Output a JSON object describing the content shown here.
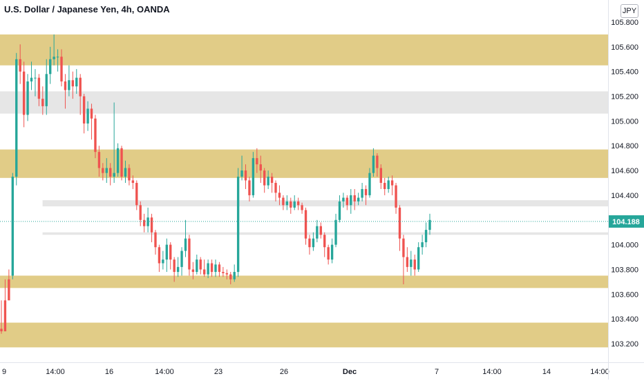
{
  "header": {
    "title": "U.S. Dollar / Japanese Yen, 4h, OANDA",
    "currency": "JPY"
  },
  "colors": {
    "bull": "#26a69a",
    "bear": "#ef5350",
    "resistance_zone": "#dec77a",
    "support_zone_grey": "#e6e6e6",
    "price_label_bg": "#26a69a",
    "price_line": "#26a69a",
    "axis_text": "#131722"
  },
  "chart_data": {
    "type": "candlestick",
    "title": "U.S. Dollar / Japanese Yen, 4h, OANDA",
    "ylim": [
      103.1,
      105.85
    ],
    "y_ticks": [
      "105.800",
      "105.600",
      "105.400",
      "105.200",
      "105.000",
      "104.800",
      "104.600",
      "104.400",
      "104.200",
      "104.000",
      "103.800",
      "103.600",
      "103.400",
      "103.200"
    ],
    "x_ticks": [
      "9",
      "14:00",
      "16",
      "14:00",
      "23",
      "26",
      "Dec",
      "7",
      "14:00",
      "14",
      "14:00"
    ],
    "current_price": "104.188",
    "current_price_value": 104.188,
    "zones": [
      {
        "kind": "gold",
        "y_top": 105.7,
        "y_bottom": 105.45,
        "x_start": 0,
        "x_end": 1
      },
      {
        "kind": "grey",
        "y_top": 105.24,
        "y_bottom": 105.06,
        "x_start": 0,
        "x_end": 1
      },
      {
        "kind": "gold",
        "y_top": 104.77,
        "y_bottom": 104.54,
        "x_start": 0,
        "x_end": 1
      },
      {
        "kind": "grey",
        "y_top": 104.36,
        "y_bottom": 104.31,
        "x_start": 0.07,
        "x_end": 1
      },
      {
        "kind": "grey",
        "y_top": 104.1,
        "y_bottom": 104.08,
        "x_start": 0.07,
        "x_end": 1
      },
      {
        "kind": "gold",
        "y_top": 103.75,
        "y_bottom": 103.65,
        "x_start": 0,
        "x_end": 1
      },
      {
        "kind": "gold",
        "y_top": 103.37,
        "y_bottom": 103.17,
        "x_start": 0,
        "x_end": 1
      }
    ],
    "candles": [
      [
        103.32,
        103.3,
        103.55,
        103.28
      ],
      [
        103.55,
        103.3,
        103.72,
        103.52
      ],
      [
        103.72,
        103.55,
        103.8,
        103.65
      ],
      [
        103.75,
        104.55,
        104.58,
        103.72
      ],
      [
        104.55,
        105.5,
        105.55,
        104.48
      ],
      [
        105.5,
        105.4,
        105.62,
        105.3
      ],
      [
        105.4,
        105.05,
        105.48,
        104.95
      ],
      [
        105.05,
        105.32,
        105.38,
        105.0
      ],
      [
        105.32,
        105.35,
        105.48,
        105.25
      ],
      [
        105.35,
        105.35,
        105.42,
        105.2
      ],
      [
        105.35,
        105.18,
        105.38,
        105.12
      ],
      [
        105.18,
        105.12,
        105.28,
        105.05
      ],
      [
        105.12,
        105.38,
        105.5,
        105.05
      ],
      [
        105.38,
        105.5,
        105.6,
        105.3
      ],
      [
        105.5,
        105.52,
        105.7,
        105.45
      ],
      [
        105.52,
        105.52,
        105.58,
        105.4
      ],
      [
        105.52,
        105.32,
        105.58,
        105.28
      ],
      [
        105.32,
        105.25,
        105.38,
        105.1
      ],
      [
        105.25,
        105.33,
        105.45,
        105.2
      ],
      [
        105.33,
        105.28,
        105.4,
        105.18
      ],
      [
        105.28,
        105.35,
        105.42,
        105.22
      ],
      [
        105.35,
        105.2,
        105.38,
        105.05
      ],
      [
        105.2,
        104.98,
        105.22,
        104.9
      ],
      [
        104.98,
        105.1,
        105.16,
        104.92
      ],
      [
        105.1,
        105.02,
        105.14,
        104.85
      ],
      [
        105.02,
        104.75,
        105.05,
        104.7
      ],
      [
        104.75,
        104.62,
        104.8,
        104.55
      ],
      [
        104.62,
        104.58,
        104.66,
        104.52
      ],
      [
        104.58,
        104.62,
        104.7,
        104.5
      ],
      [
        104.62,
        104.55,
        104.66,
        104.48
      ],
      [
        104.55,
        104.58,
        105.15,
        104.5
      ],
      [
        104.58,
        104.78,
        104.82,
        104.55
      ],
      [
        104.78,
        104.55,
        104.8,
        104.52
      ],
      [
        104.55,
        104.62,
        104.68,
        104.5
      ],
      [
        104.62,
        104.52,
        104.65,
        104.48
      ],
      [
        104.52,
        104.5,
        104.56,
        104.45
      ],
      [
        104.5,
        104.32,
        104.52,
        104.28
      ],
      [
        104.32,
        104.2,
        104.35,
        104.15
      ],
      [
        104.2,
        104.15,
        104.25,
        104.1
      ],
      [
        104.15,
        104.22,
        104.3,
        104.1
      ],
      [
        104.22,
        104.1,
        104.25,
        104.02
      ],
      [
        104.1,
        103.98,
        104.12,
        103.92
      ],
      [
        103.98,
        103.85,
        104.0,
        103.78
      ],
      [
        103.85,
        103.88,
        103.95,
        103.8
      ],
      [
        103.88,
        104.0,
        104.05,
        103.78
      ],
      [
        104.0,
        103.88,
        104.02,
        103.8
      ],
      [
        103.88,
        103.78,
        103.9,
        103.7
      ],
      [
        103.78,
        103.82,
        103.9,
        103.74
      ],
      [
        103.82,
        103.95,
        103.98,
        103.75
      ],
      [
        103.95,
        104.05,
        104.2,
        103.9
      ],
      [
        104.05,
        103.8,
        104.08,
        103.75
      ],
      [
        103.8,
        103.78,
        103.86,
        103.72
      ],
      [
        103.78,
        103.88,
        103.92,
        103.76
      ],
      [
        103.88,
        103.8,
        103.9,
        103.76
      ],
      [
        103.8,
        103.76,
        103.88,
        103.74
      ],
      [
        103.76,
        103.85,
        103.88,
        103.73
      ],
      [
        103.85,
        103.78,
        103.88,
        103.74
      ],
      [
        103.78,
        103.84,
        103.88,
        103.74
      ],
      [
        103.84,
        103.78,
        103.86,
        103.74
      ],
      [
        103.78,
        103.77,
        103.82,
        103.74
      ],
      [
        103.77,
        103.76,
        103.8,
        103.72
      ],
      [
        103.76,
        103.72,
        103.78,
        103.68
      ],
      [
        103.72,
        103.78,
        103.84,
        103.7
      ],
      [
        103.78,
        104.55,
        104.62,
        103.74
      ],
      [
        104.55,
        104.6,
        104.72,
        104.52
      ],
      [
        104.6,
        104.52,
        104.65,
        104.45
      ],
      [
        104.52,
        104.4,
        104.55,
        104.35
      ],
      [
        104.4,
        104.7,
        104.75,
        104.38
      ],
      [
        104.7,
        104.65,
        104.78,
        104.58
      ],
      [
        104.65,
        104.6,
        104.72,
        104.5
      ],
      [
        104.6,
        104.48,
        104.62,
        104.42
      ],
      [
        104.48,
        104.55,
        104.6,
        104.45
      ],
      [
        104.55,
        104.5,
        104.58,
        104.42
      ],
      [
        104.5,
        104.42,
        104.52,
        104.35
      ],
      [
        104.42,
        104.38,
        104.48,
        104.32
      ],
      [
        104.38,
        104.32,
        104.4,
        104.28
      ],
      [
        104.32,
        104.35,
        104.4,
        104.28
      ],
      [
        104.35,
        104.3,
        104.38,
        104.25
      ],
      [
        104.3,
        104.35,
        104.4,
        104.28
      ],
      [
        104.35,
        104.32,
        104.38,
        104.28
      ],
      [
        104.32,
        104.28,
        104.34,
        104.25
      ],
      [
        104.28,
        104.05,
        104.3,
        104.0
      ],
      [
        104.05,
        103.98,
        104.08,
        103.92
      ],
      [
        103.98,
        104.05,
        104.1,
        103.95
      ],
      [
        104.05,
        104.15,
        104.2,
        104.02
      ],
      [
        104.15,
        104.08,
        104.18,
        104.05
      ],
      [
        104.08,
        103.98,
        104.1,
        103.9
      ],
      [
        103.98,
        103.88,
        104.0,
        103.84
      ],
      [
        103.88,
        104.0,
        104.05,
        103.85
      ],
      [
        104.0,
        104.2,
        104.25,
        103.98
      ],
      [
        104.2,
        104.35,
        104.4,
        104.18
      ],
      [
        104.35,
        104.38,
        104.42,
        104.3
      ],
      [
        104.38,
        104.32,
        104.4,
        104.28
      ],
      [
        104.32,
        104.4,
        104.45,
        104.25
      ],
      [
        104.4,
        104.35,
        104.45,
        104.28
      ],
      [
        104.35,
        104.38,
        104.42,
        104.32
      ],
      [
        104.38,
        104.45,
        104.5,
        104.35
      ],
      [
        104.45,
        104.4,
        104.48,
        104.32
      ],
      [
        104.4,
        104.58,
        104.62,
        104.38
      ],
      [
        104.58,
        104.72,
        104.78,
        104.55
      ],
      [
        104.72,
        104.62,
        104.74,
        104.55
      ],
      [
        104.62,
        104.5,
        104.65,
        104.45
      ],
      [
        104.5,
        104.45,
        104.54,
        104.4
      ],
      [
        104.45,
        104.52,
        104.55,
        104.42
      ],
      [
        104.52,
        104.48,
        104.56,
        104.4
      ],
      [
        104.48,
        104.3,
        104.5,
        104.25
      ],
      [
        104.3,
        104.05,
        104.32,
        103.95
      ],
      [
        104.05,
        103.9,
        104.08,
        103.68
      ],
      [
        103.9,
        103.82,
        103.98,
        103.78
      ],
      [
        103.82,
        103.88,
        103.95,
        103.75
      ],
      [
        103.88,
        103.8,
        103.92,
        103.75
      ],
      [
        103.8,
        103.98,
        104.02,
        103.78
      ],
      [
        103.98,
        104.02,
        104.08,
        103.92
      ],
      [
        104.02,
        104.12,
        104.18,
        103.98
      ],
      [
        104.12,
        104.2,
        104.25,
        104.08
      ]
    ]
  }
}
